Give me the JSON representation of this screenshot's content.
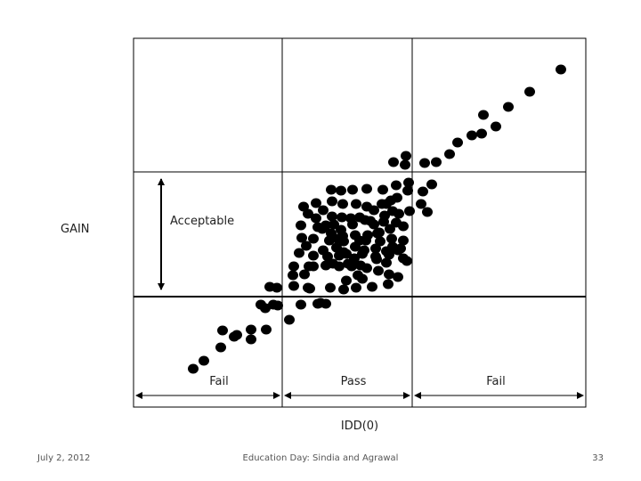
{
  "chart_data": {
    "type": "scatter",
    "title": "",
    "xlabel": "IDD(0)",
    "ylabel": "GAIN",
    "grid": true,
    "legend": "none",
    "regions": {
      "x_bands": [
        "Fail",
        "Pass",
        "Fail"
      ],
      "y_band_label": "Acceptable"
    },
    "series": [
      {
        "marker_color": "#000000",
        "points": [
          [
            217,
            414
          ],
          [
            229,
            405
          ],
          [
            248,
            390
          ],
          [
            263,
            378
          ],
          [
            250,
            371
          ],
          [
            266,
            376
          ],
          [
            282,
            381
          ],
          [
            282,
            370
          ],
          [
            299,
            370
          ],
          [
            298,
            346
          ],
          [
            307,
            342
          ],
          [
            293,
            342
          ],
          [
            311,
            323
          ],
          [
            303,
            322
          ],
          [
            312,
            343
          ],
          [
            325,
            359
          ],
          [
            330,
            321
          ],
          [
            329,
            309
          ],
          [
            338,
            342
          ],
          [
            346,
            323
          ],
          [
            348,
            324
          ],
          [
            357,
            341
          ],
          [
            366,
            341
          ],
          [
            360,
            340
          ],
          [
            330,
            299
          ],
          [
            347,
            299
          ],
          [
            342,
            308
          ],
          [
            352,
            299
          ],
          [
            371,
            323
          ],
          [
            386,
            325
          ],
          [
            400,
            323
          ],
          [
            407,
            313
          ],
          [
            418,
            322
          ],
          [
            436,
            319
          ],
          [
            437,
            308
          ],
          [
            447,
            311
          ],
          [
            336,
            284
          ],
          [
            339,
            267
          ],
          [
            338,
            253
          ],
          [
            344,
            276
          ],
          [
            352,
            287
          ],
          [
            366,
            298
          ],
          [
            381,
            299
          ],
          [
            395,
            299
          ],
          [
            407,
            285
          ],
          [
            423,
            291
          ],
          [
            434,
            295
          ],
          [
            427,
            271
          ],
          [
            441,
            277
          ],
          [
            457,
            293
          ],
          [
            346,
            240
          ],
          [
            341,
            232
          ],
          [
            355,
            228
          ],
          [
            355,
            245
          ],
          [
            357,
            255
          ],
          [
            352,
            268
          ],
          [
            370,
            270
          ],
          [
            386,
            283
          ],
          [
            391,
            296
          ],
          [
            398,
            290
          ],
          [
            405,
            298
          ],
          [
            409,
            281
          ],
          [
            411,
            270
          ],
          [
            422,
            279
          ],
          [
            437,
            286
          ],
          [
            447,
            281
          ],
          [
            440,
            268
          ],
          [
            453,
            254
          ],
          [
            448,
            240
          ],
          [
            434,
            229
          ],
          [
            372,
            213
          ],
          [
            383,
            214
          ],
          [
            396,
            213
          ],
          [
            412,
            212
          ],
          [
            430,
            213
          ],
          [
            439,
            225
          ],
          [
            445,
            208
          ],
          [
            458,
            214
          ],
          [
            459,
            205
          ],
          [
            455,
            185
          ],
          [
            456,
            175
          ],
          [
            442,
            182
          ],
          [
            477,
            183
          ],
          [
            485,
            207
          ],
          [
            475,
            215
          ],
          [
            473,
            229
          ],
          [
            480,
            238
          ],
          [
            490,
            182
          ],
          [
            505,
            173
          ],
          [
            514,
            160
          ],
          [
            530,
            152
          ],
          [
            543,
            129
          ],
          [
            541,
            150
          ],
          [
            557,
            142
          ],
          [
            571,
            120
          ],
          [
            595,
            103
          ],
          [
            630,
            78
          ],
          [
            373,
            243
          ],
          [
            383,
            258
          ],
          [
            396,
            252
          ],
          [
            399,
            264
          ],
          [
            410,
            247
          ],
          [
            420,
            252
          ],
          [
            426,
            261
          ],
          [
            438,
            257
          ],
          [
            431,
            249
          ],
          [
            441,
            237
          ],
          [
            432,
            242
          ],
          [
            420,
            236
          ],
          [
            412,
            232
          ],
          [
            400,
            229
          ],
          [
            385,
            229
          ],
          [
            373,
            226
          ],
          [
            363,
            236
          ],
          [
            366,
            253
          ],
          [
            372,
            262
          ],
          [
            385,
            265
          ],
          [
            399,
            277
          ],
          [
            413,
            264
          ],
          [
            424,
            262
          ],
          [
            416,
            248
          ],
          [
            404,
            244
          ],
          [
            394,
            245
          ],
          [
            384,
            244
          ],
          [
            379,
            268
          ],
          [
            368,
            288
          ],
          [
            378,
            278
          ],
          [
            389,
            285
          ],
          [
            404,
            270
          ],
          [
            429,
            229
          ],
          [
            446,
            222
          ],
          [
            460,
            237
          ],
          [
            445,
            250
          ],
          [
            453,
            270
          ],
          [
            450,
            279
          ],
          [
            425,
            304
          ],
          [
            412,
            301
          ],
          [
            395,
            297
          ],
          [
            381,
            287
          ],
          [
            362,
            257
          ],
          [
            375,
            252
          ],
          [
            386,
            271
          ],
          [
            363,
            281
          ],
          [
            374,
            296
          ],
          [
            389,
            315
          ],
          [
            402,
            309
          ],
          [
            422,
            288
          ],
          [
            434,
            282
          ],
          [
            453,
            290
          ]
        ]
      }
    ]
  },
  "footer": {
    "date": "July 2, 2012",
    "title": "Education Day: Sindia and Agrawal",
    "page": "33"
  }
}
